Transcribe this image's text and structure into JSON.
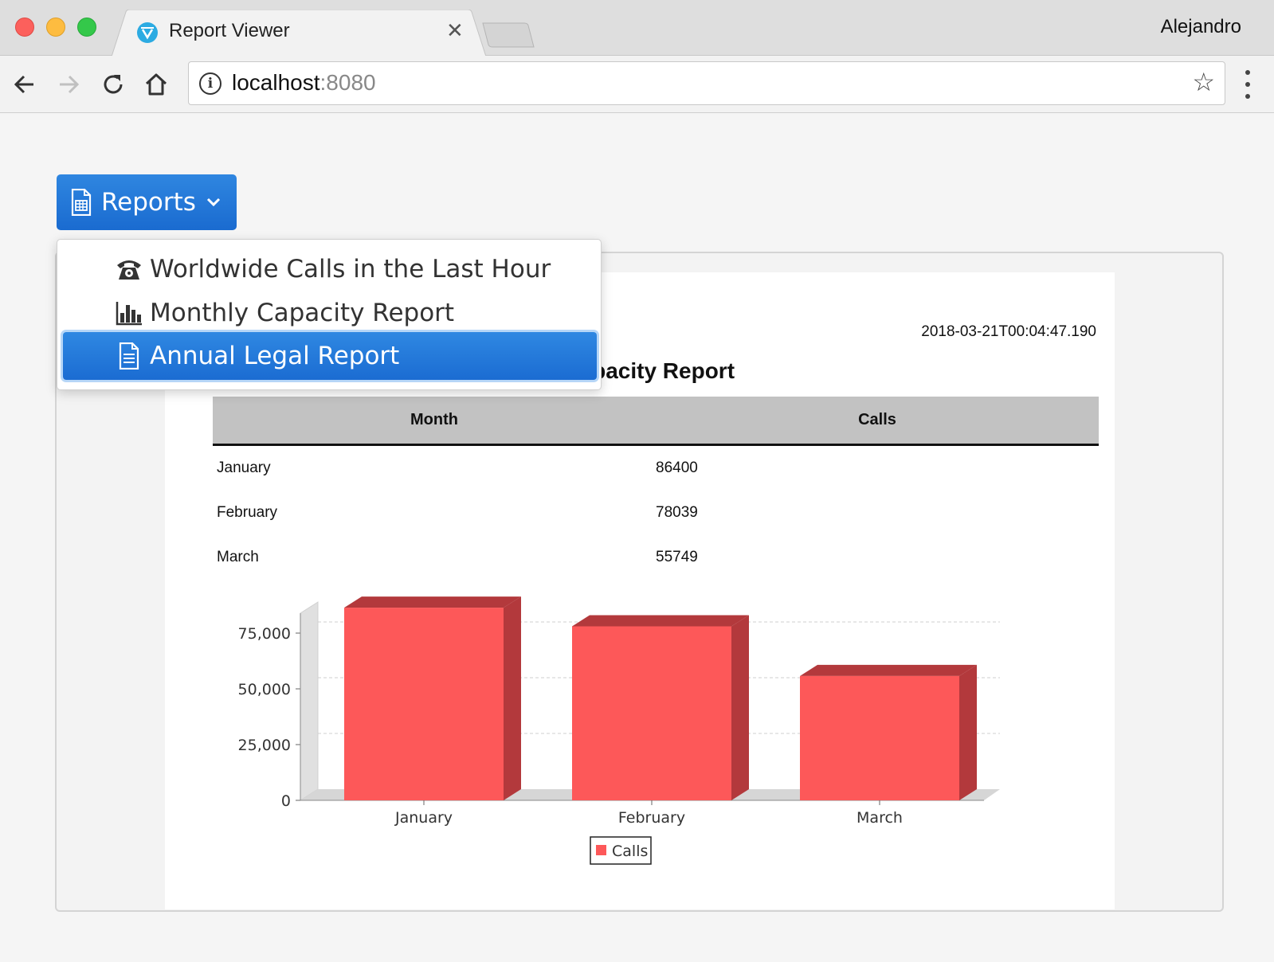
{
  "browser": {
    "tab_title": "Report Viewer",
    "profile_name": "Alejandro",
    "url_host": "localhost",
    "url_port": ":8080"
  },
  "page": {
    "reports_button_label": "Reports",
    "menu_items": [
      {
        "label": "Worldwide Calls in the Last Hour",
        "icon": "phone-icon"
      },
      {
        "label": "Monthly Capacity Report",
        "icon": "bar-chart-icon"
      },
      {
        "label": "Annual Legal Report",
        "icon": "document-icon",
        "selected": true
      }
    ],
    "report": {
      "timestamp": "2018-03-21T00:04:47.190",
      "title_visible": "y Capacity Report",
      "columns": [
        "Month",
        "Calls"
      ],
      "rows": [
        {
          "month": "January",
          "calls": "86400"
        },
        {
          "month": "February",
          "calls": "78039"
        },
        {
          "month": "March",
          "calls": "55749"
        }
      ]
    }
  },
  "chart_data": {
    "type": "bar",
    "categories": [
      "January",
      "February",
      "March"
    ],
    "series": [
      {
        "name": "Calls",
        "values": [
          86400,
          78039,
          55749
        ],
        "color": "#fd5859"
      }
    ],
    "yticks": [
      "0",
      "25,000",
      "50,000",
      "75,000"
    ],
    "ylim": [
      0,
      100000
    ],
    "legend": "bottom",
    "grid": true,
    "three_d": true
  }
}
